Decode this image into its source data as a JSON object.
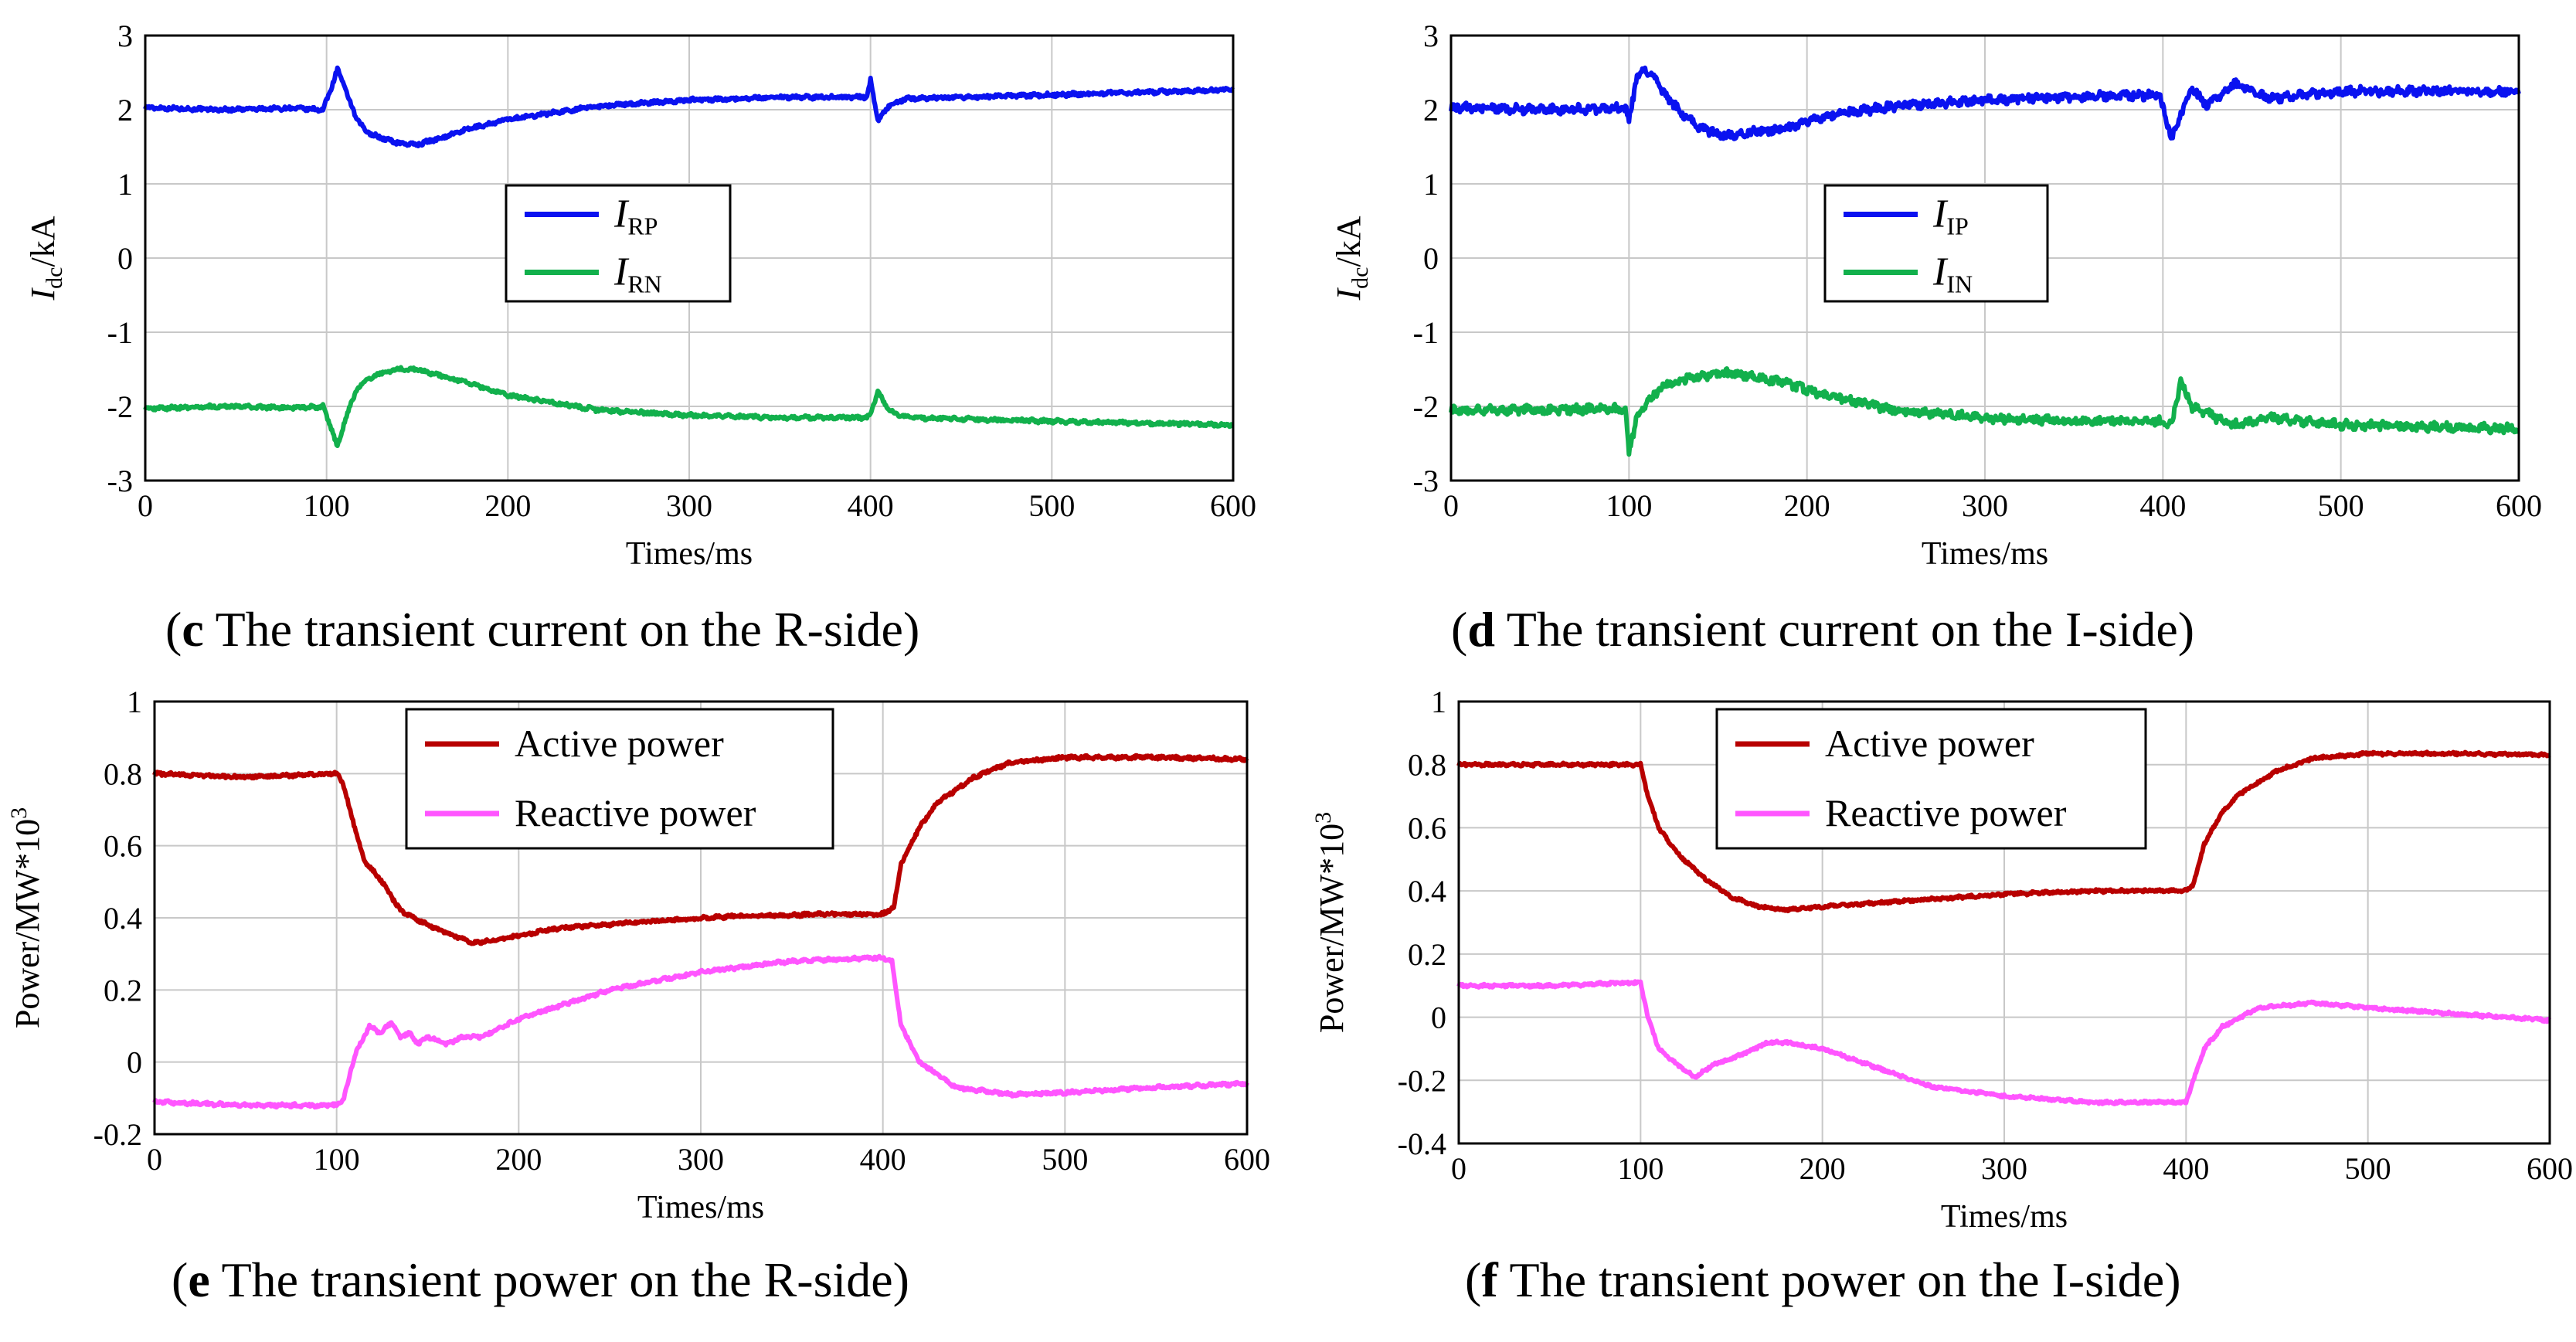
{
  "captions": {
    "c": {
      "letter": "c",
      "text": " The transient current on the R-side"
    },
    "d": {
      "letter": "d",
      "text": " The transient current on the I-side"
    },
    "e": {
      "letter": "e",
      "text": " The transient power on the R-side"
    },
    "f": {
      "letter": "f",
      "text": " The transient power on the I-side"
    }
  },
  "chart_data": [
    {
      "id": "c",
      "type": "line",
      "title": "(c) The transient current on the R-side",
      "xlabel": "Times/ms",
      "ylabel_main": "I",
      "ylabel_sub": "dc",
      "ylabel_rest": "/kA",
      "xlim": [
        0,
        600
      ],
      "ylim": [
        -3,
        3
      ],
      "xticks": [
        0,
        100,
        200,
        300,
        400,
        500,
        600
      ],
      "yticks": [
        -3,
        -2,
        -1,
        0,
        1,
        2,
        3
      ],
      "grid": true,
      "legend_position": "center",
      "series": [
        {
          "name": "I",
          "sub": "RP",
          "color": "#0a12f0",
          "noise": 0.022,
          "x": [
            0,
            40,
            80,
            98,
            102,
            106,
            110,
            116,
            122,
            130,
            140,
            150,
            160,
            180,
            200,
            250,
            300,
            350,
            398,
            400,
            404,
            410,
            420,
            500,
            600
          ],
          "y": [
            2.03,
            2.0,
            2.02,
            2.0,
            2.25,
            2.55,
            2.3,
            1.9,
            1.7,
            1.62,
            1.55,
            1.53,
            1.6,
            1.75,
            1.87,
            2.05,
            2.13,
            2.17,
            2.17,
            2.4,
            1.85,
            2.05,
            2.15,
            2.2,
            2.27
          ]
        },
        {
          "name": "I",
          "sub": "RN",
          "color": "#12b04c",
          "noise": 0.022,
          "x": [
            0,
            40,
            80,
            98,
            102,
            106,
            110,
            116,
            122,
            130,
            140,
            150,
            160,
            180,
            200,
            250,
            300,
            350,
            398,
            400,
            404,
            410,
            420,
            500,
            600
          ],
          "y": [
            -2.03,
            -2.0,
            -2.02,
            -2.0,
            -2.25,
            -2.55,
            -2.2,
            -1.8,
            -1.65,
            -1.55,
            -1.5,
            -1.5,
            -1.57,
            -1.7,
            -1.85,
            -2.05,
            -2.12,
            -2.15,
            -2.15,
            -2.1,
            -1.8,
            -2.05,
            -2.15,
            -2.2,
            -2.25
          ]
        }
      ]
    },
    {
      "id": "d",
      "type": "line",
      "title": "(d) The transient current on the I-side",
      "xlabel": "Times/ms",
      "ylabel_main": "I",
      "ylabel_sub": "dc",
      "ylabel_rest": "/kA",
      "xlim": [
        0,
        600
      ],
      "ylim": [
        -3,
        3
      ],
      "xticks": [
        0,
        100,
        200,
        300,
        400,
        500,
        600
      ],
      "yticks": [
        -3,
        -2,
        -1,
        0,
        1,
        2,
        3
      ],
      "grid": true,
      "legend_position": "center",
      "series": [
        {
          "name": "I",
          "sub": "IP",
          "color": "#0a12f0",
          "noise": 0.05,
          "x": [
            0,
            50,
            98,
            100,
            104,
            108,
            114,
            120,
            130,
            140,
            155,
            170,
            190,
            210,
            250,
            300,
            350,
            398,
            405,
            410,
            416,
            425,
            440,
            460,
            500,
            600
          ],
          "y": [
            2.03,
            2.0,
            2.02,
            1.85,
            2.4,
            2.55,
            2.45,
            2.2,
            1.95,
            1.75,
            1.65,
            1.7,
            1.75,
            1.92,
            2.05,
            2.13,
            2.18,
            2.2,
            1.6,
            1.95,
            2.3,
            2.05,
            2.35,
            2.15,
            2.25,
            2.25
          ]
        },
        {
          "name": "I",
          "sub": "IN",
          "color": "#12b04c",
          "noise": 0.05,
          "x": [
            0,
            50,
            98,
            100,
            104,
            108,
            114,
            120,
            130,
            140,
            155,
            170,
            190,
            210,
            250,
            300,
            350,
            398,
            405,
            410,
            416,
            425,
            440,
            460,
            500,
            600
          ],
          "y": [
            -2.05,
            -2.05,
            -2.03,
            -2.6,
            -2.2,
            -2.0,
            -1.85,
            -1.7,
            -1.65,
            -1.6,
            -1.55,
            -1.6,
            -1.7,
            -1.85,
            -2.05,
            -2.15,
            -2.2,
            -2.2,
            -2.25,
            -1.65,
            -2.0,
            -2.1,
            -2.25,
            -2.15,
            -2.25,
            -2.3
          ]
        }
      ]
    },
    {
      "id": "e",
      "type": "line",
      "title": "(e) The transient power on the R-side",
      "xlabel": "Times/ms",
      "ylabel_main": "Power/MW*10",
      "ylabel_sup": "3",
      "xlim": [
        0,
        600
      ],
      "ylim": [
        -0.2,
        1
      ],
      "xticks": [
        0,
        100,
        200,
        300,
        400,
        500,
        600
      ],
      "yticks": [
        -0.2,
        0,
        0.2,
        0.4,
        0.6,
        0.8,
        1
      ],
      "grid": true,
      "legend_position": "top-center",
      "series": [
        {
          "name": "Active power",
          "color": "#b80000",
          "noise": 0.004,
          "x": [
            0,
            50,
            100,
            103,
            110,
            115,
            125,
            135,
            150,
            165,
            175,
            190,
            220,
            270,
            320,
            370,
            400,
            406,
            410,
            420,
            430,
            450,
            470,
            500,
            550,
            600
          ],
          "y": [
            0.8,
            0.79,
            0.8,
            0.78,
            0.65,
            0.56,
            0.5,
            0.42,
            0.38,
            0.35,
            0.33,
            0.34,
            0.37,
            0.39,
            0.405,
            0.41,
            0.41,
            0.43,
            0.55,
            0.65,
            0.72,
            0.79,
            0.83,
            0.845,
            0.845,
            0.84
          ]
        },
        {
          "name": "Reactive power",
          "color": "#ff55ff",
          "noise": 0.004,
          "x": [
            0,
            50,
            100,
            104,
            110,
            118,
            124,
            130,
            135,
            140,
            145,
            150,
            160,
            170,
            180,
            200,
            250,
            300,
            350,
            400,
            405,
            410,
            420,
            440,
            470,
            500,
            550,
            600
          ],
          "y": [
            -0.11,
            -0.12,
            -0.12,
            -0.1,
            0.02,
            0.1,
            0.08,
            0.11,
            0.07,
            0.08,
            0.05,
            0.07,
            0.05,
            0.07,
            0.07,
            0.12,
            0.2,
            0.25,
            0.28,
            0.29,
            0.28,
            0.1,
            0.0,
            -0.07,
            -0.09,
            -0.085,
            -0.07,
            -0.06
          ]
        }
      ]
    },
    {
      "id": "f",
      "type": "line",
      "title": "(f) The transient power on the I-side",
      "xlabel": "Times/ms",
      "ylabel_main": "Power/MW*10",
      "ylabel_sup": "3",
      "xlim": [
        0,
        600
      ],
      "ylim": [
        -0.4,
        1
      ],
      "xticks": [
        0,
        100,
        200,
        300,
        400,
        500,
        600
      ],
      "yticks": [
        -0.4,
        -0.2,
        0,
        0.2,
        0.4,
        0.6,
        0.8,
        1
      ],
      "grid": true,
      "legend_position": "top-center",
      "series": [
        {
          "name": "Active power",
          "color": "#b80000",
          "noise": 0.004,
          "x": [
            0,
            50,
            100,
            104,
            110,
            120,
            135,
            150,
            165,
            180,
            200,
            250,
            300,
            350,
            400,
            404,
            410,
            420,
            430,
            450,
            470,
            500,
            550,
            600
          ],
          "y": [
            0.8,
            0.8,
            0.8,
            0.7,
            0.6,
            0.52,
            0.44,
            0.38,
            0.35,
            0.34,
            0.35,
            0.37,
            0.39,
            0.4,
            0.4,
            0.42,
            0.55,
            0.65,
            0.71,
            0.78,
            0.82,
            0.835,
            0.835,
            0.83
          ]
        },
        {
          "name": "Reactive power",
          "color": "#ff55ff",
          "noise": 0.004,
          "x": [
            0,
            50,
            100,
            104,
            110,
            120,
            130,
            140,
            155,
            170,
            180,
            200,
            230,
            260,
            300,
            350,
            400,
            404,
            410,
            420,
            440,
            470,
            500,
            550,
            600
          ],
          "y": [
            0.1,
            0.1,
            0.11,
            0.0,
            -0.1,
            -0.15,
            -0.19,
            -0.15,
            -0.12,
            -0.08,
            -0.08,
            -0.1,
            -0.16,
            -0.22,
            -0.25,
            -0.27,
            -0.27,
            -0.2,
            -0.1,
            -0.03,
            0.03,
            0.045,
            0.03,
            0.01,
            -0.01
          ]
        }
      ]
    }
  ]
}
